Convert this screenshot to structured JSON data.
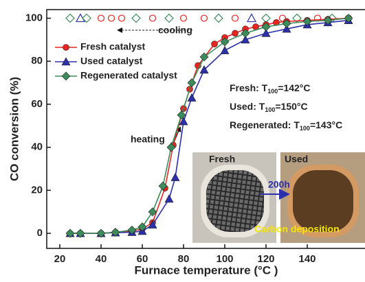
{
  "chart_data": {
    "type": "line",
    "x_label": "Furnace temperature (°C )",
    "y_label": "CO conversion (%)",
    "xlim": [
      14,
      167
    ],
    "xticks": [
      20,
      40,
      60,
      80,
      100,
      120,
      140
    ],
    "ylim": [
      -7,
      104
    ],
    "yticks": [
      0,
      20,
      40,
      60,
      80,
      100
    ],
    "series": [
      {
        "name": "Fresh catalyst",
        "color": "#e8251f",
        "marker": "circle",
        "x": [
          25,
          30,
          40,
          47,
          55,
          60,
          65,
          71,
          75,
          80,
          83,
          87,
          95,
          100,
          105,
          110,
          115,
          120,
          125,
          130,
          140,
          150,
          160
        ],
        "values": [
          0,
          0,
          0,
          0.5,
          1,
          2,
          5,
          21,
          41,
          58,
          67,
          78,
          88,
          91,
          93,
          95,
          96,
          97,
          98,
          98.5,
          99,
          99.5,
          100
        ]
      },
      {
        "name": "Used catalyst",
        "color": "#2b2fa8",
        "marker": "triangle",
        "x": [
          25,
          30,
          40,
          47,
          55,
          60,
          65,
          73,
          76,
          80,
          84,
          90,
          100,
          110,
          120,
          130,
          140,
          150,
          160
        ],
        "values": [
          0,
          0,
          0,
          0.3,
          0.5,
          1,
          4,
          16,
          26,
          52,
          63,
          76,
          85,
          90,
          93,
          95,
          97,
          98,
          99
        ]
      },
      {
        "name": "Regenerated catalyst",
        "color": "#3d8a5a",
        "marker": "diamond",
        "x": [
          25,
          30,
          40,
          47,
          55,
          60,
          65,
          70,
          74,
          79,
          84,
          90,
          100,
          110,
          120,
          130,
          140,
          150,
          160
        ],
        "values": [
          0,
          0,
          0,
          0.5,
          1.5,
          3,
          10,
          22,
          40,
          55,
          70,
          82,
          89,
          93,
          96,
          97.5,
          98.5,
          99,
          100
        ]
      }
    ],
    "cooling_points": {
      "x": [
        25,
        30,
        33,
        40,
        45,
        50,
        57,
        65,
        73,
        80,
        90,
        97,
        105,
        113,
        120,
        128,
        135,
        145,
        152,
        160
      ],
      "values": [
        100,
        100,
        100,
        100,
        100,
        100,
        100,
        100,
        100,
        100,
        100,
        100,
        100,
        100,
        100,
        100,
        100,
        100,
        100,
        100
      ],
      "markers": [
        "diamond",
        "triangle",
        "diamond",
        "circle",
        "circle",
        "circle",
        "diamond",
        "circle",
        "diamond",
        "circle",
        "circle",
        "diamond",
        "circle",
        "triangle",
        "diamond",
        "circle",
        "diamond",
        "circle",
        "diamond",
        "circle"
      ],
      "colors": [
        "#3d8a5a",
        "#2b2fa8",
        "#3d8a5a",
        "#e8251f",
        "#e8251f",
        "#e8251f",
        "#3d8a5a",
        "#e8251f",
        "#3d8a5a",
        "#e8251f",
        "#e8251f",
        "#3d8a5a",
        "#e8251f",
        "#2b2fa8",
        "#3d8a5a",
        "#e8251f",
        "#3d8a5a",
        "#e8251f",
        "#3d8a5a",
        "#e8251f"
      ]
    },
    "annotations": {
      "cooling": "cooling",
      "heating": "heating",
      "t100": [
        {
          "prefix": "Fresh: T",
          "sub": "100",
          "suffix": "=142°C"
        },
        {
          "prefix": "Used:  T",
          "sub": "100",
          "suffix": "=150°C"
        },
        {
          "prefix": "Regenerated: T",
          "sub": "100",
          "suffix": "=143°C"
        }
      ],
      "photo_fresh": "Fresh",
      "photo_used": "Used",
      "arrow_label": "200h",
      "deposit": "Carbon deposition"
    }
  }
}
